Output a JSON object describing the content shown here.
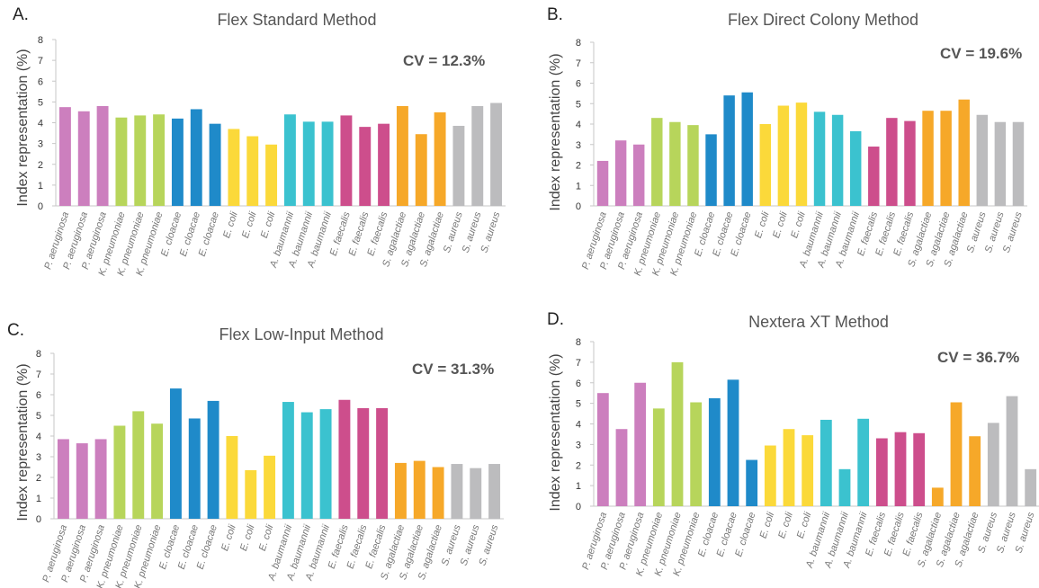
{
  "chart_data": [
    {
      "type": "bar",
      "panel": "A.",
      "title": "Flex Standard Method",
      "annotation": "CV = 12.3%",
      "ylabel": "Index representation (%)",
      "ylim": [
        0,
        8
      ],
      "yticks": [
        "0",
        "1",
        "2",
        "3",
        "4",
        "5",
        "6",
        "7",
        "8"
      ],
      "categories": [
        "P. aeruginosa",
        "P. aeruginosa",
        "P. aeruginosa",
        "K. pneumoniae",
        "K. pneumoniae",
        "K. pneumoniae",
        "E. cloacae",
        "E. cloacae",
        "E. cloacae",
        "E. coli",
        "E. coli",
        "E. coli",
        "A. baumannii",
        "A. baumannii",
        "A. baumannii",
        "E. faecalis",
        "E. faecalis",
        "E. faecalis",
        "S. agalactiae",
        "S. agalactiae",
        "S. agalactiae",
        "S. aureus",
        "S. aureus",
        "S. aureus"
      ],
      "values": [
        4.75,
        4.55,
        4.8,
        4.25,
        4.35,
        4.4,
        4.2,
        4.65,
        3.95,
        3.7,
        3.35,
        2.95,
        4.4,
        4.05,
        4.05,
        4.35,
        3.8,
        3.95,
        4.8,
        3.45,
        4.5,
        3.85,
        4.8,
        4.95
      ]
    },
    {
      "type": "bar",
      "panel": "B.",
      "title": "Flex Direct Colony Method",
      "annotation": "CV = 19.6%",
      "ylabel": "Index representation (%)",
      "ylim": [
        0,
        8
      ],
      "yticks": [
        "0",
        "1",
        "2",
        "3",
        "4",
        "5",
        "6",
        "7",
        "8"
      ],
      "categories": [
        "P. aeruginosa",
        "P. aeruginosa",
        "P. aeruginosa",
        "K. pneumoniae",
        "K. pneumoniae",
        "K. pneumoniae",
        "E. cloacae",
        "E. cloacae",
        "E. cloacae",
        "E. coli",
        "E. coli",
        "E. coli",
        "A. baumannii",
        "A. baumannii",
        "A. baumannii",
        "E. faecalis",
        "E. faecalis",
        "E. faecalis",
        "S. agalactiae",
        "S. agalactiae",
        "S. agalactiae",
        "S. aureus",
        "S. aureus",
        "S. aureus"
      ],
      "values": [
        2.2,
        3.2,
        3.0,
        4.3,
        4.1,
        3.95,
        3.5,
        5.4,
        5.55,
        4.0,
        4.9,
        5.05,
        4.6,
        4.45,
        3.65,
        2.9,
        4.3,
        4.15,
        4.65,
        4.65,
        5.2,
        4.45,
        4.1,
        4.1
      ]
    },
    {
      "type": "bar",
      "panel": "C.",
      "title": "Flex Low-Input Method",
      "annotation": "CV = 31.3%",
      "ylabel": "Index representation (%)",
      "ylim": [
        0,
        8
      ],
      "yticks": [
        "0",
        "1",
        "2",
        "3",
        "4",
        "5",
        "6",
        "7",
        "8"
      ],
      "categories": [
        "P. aeruginosa",
        "P. aeruginosa",
        "P. aeruginosa",
        "K. pneumoniae",
        "K. pneumoniae",
        "K. pneumoniae",
        "E. cloacae",
        "E. cloacae",
        "E. cloacae",
        "E. coli",
        "E. coli",
        "E. coli",
        "A. baumannii",
        "A. baumannii",
        "A. baumannii",
        "E. faecalis",
        "E. faecalis",
        "E. faecalis",
        "S. agalactiae",
        "S. agalactiae",
        "S. agalactiae",
        "S. aureus",
        "S. aureus",
        "S. aureus"
      ],
      "values": [
        3.85,
        3.65,
        3.85,
        4.5,
        5.2,
        4.6,
        6.3,
        4.85,
        5.7,
        4.0,
        2.35,
        3.05,
        5.65,
        5.15,
        5.3,
        5.75,
        5.35,
        5.35,
        2.7,
        2.8,
        2.5,
        2.65,
        2.45,
        2.65
      ]
    },
    {
      "type": "bar",
      "panel": "D.",
      "title": "Nextera XT Method",
      "annotation": "CV = 36.7%",
      "ylabel": "Index representation (%)",
      "ylim": [
        0,
        8
      ],
      "yticks": [
        "0",
        "1",
        "2",
        "3",
        "4",
        "5",
        "6",
        "7",
        "8"
      ],
      "categories": [
        "P. aeruginosa",
        "P. aeruginosa",
        "P. aeruginosa",
        "K. pneumoniae",
        "K. pneumoniae",
        "K. pneumoniae",
        "E. cloacae",
        "E. cloacae",
        "E. cloacae",
        "E. coli",
        "E. coli",
        "E. coli",
        "A. baumannii",
        "A. baumannii",
        "A. baumannii",
        "E. faecalis",
        "E. faecalis",
        "E. faecalis",
        "S. agalactiae",
        "S. agalactiae",
        "S. agalactiae",
        "S. aureus",
        "S. aureus",
        "S. aureus"
      ],
      "values": [
        5.5,
        3.75,
        6.0,
        4.75,
        7.0,
        5.05,
        5.25,
        6.15,
        2.25,
        2.95,
        3.75,
        3.45,
        4.2,
        1.8,
        4.25,
        3.3,
        3.6,
        3.55,
        0.9,
        5.05,
        3.4,
        4.05,
        5.35,
        1.8
      ]
    }
  ],
  "colors": {
    "P. aeruginosa": "#cc7fbe",
    "K. pneumoniae": "#b7d55b",
    "E. cloacae": "#1f8ac9",
    "E. coli": "#fbd93a",
    "A. baumannii": "#3bc2cf",
    "E. faecalis": "#cd4e8c",
    "S. agalactiae": "#f6a829",
    "S. aureus": "#bcbcbe",
    "axis": "#c7c7c7",
    "tick_text": "#333333",
    "category_text": "#777777"
  }
}
